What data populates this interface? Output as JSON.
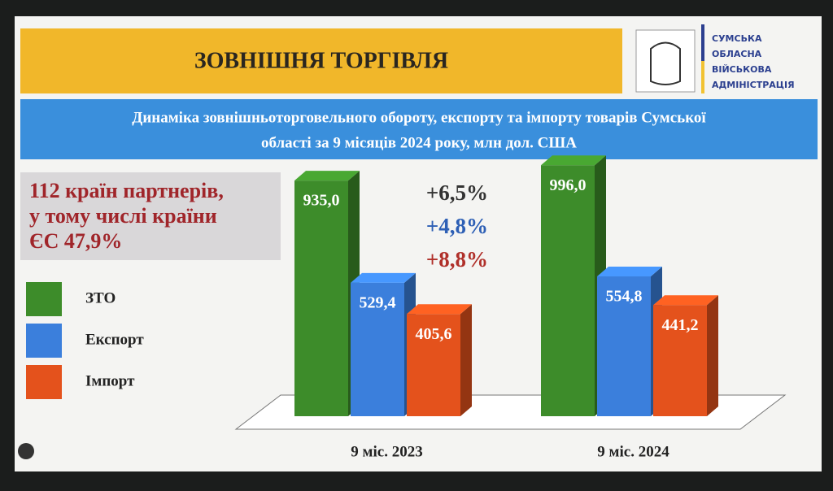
{
  "chart_data": {
    "type": "bar3d",
    "title": "ЗОВНІШНЯ ТОРГІВЛЯ",
    "subtitle": [
      "Динаміка зовнішньоторговельного обороту, експорту та імпорту товарів Сумської",
      "області за 9 місяців 2024 року, млн дол. США"
    ],
    "organization": [
      "СУМСЬКА",
      "ОБЛАСНА",
      "ВІЙСЬКОВА",
      "АДМІНІСТРАЦІЯ"
    ],
    "note": [
      "112 країн партнерів,",
      "у тому числі країни",
      "ЄС 47,9%"
    ],
    "categories": [
      "9 міс. 2023",
      "9 міс. 2024"
    ],
    "series": [
      {
        "name": "ЗТО",
        "color": "#3d8c2a",
        "values": [
          935.0,
          996.0
        ],
        "value_labels": [
          "935,0",
          "996,0"
        ]
      },
      {
        "name": "Експорт",
        "color": "#3b7fdc",
        "values": [
          529.4,
          554.8
        ],
        "value_labels": [
          "529,4",
          "554,8"
        ]
      },
      {
        "name": "Імпорт",
        "color": "#e4521c",
        "values": [
          405.6,
          441.2
        ],
        "value_labels": [
          "405,6",
          "441,2"
        ]
      }
    ],
    "annotations": [
      {
        "text": "+6,5%",
        "color": "#333333"
      },
      {
        "text": "+4,8%",
        "color": "#2d5fb5"
      },
      {
        "text": "+8,8%",
        "color": "#b0302a"
      }
    ],
    "ylim": [
      0,
      1000
    ]
  }
}
